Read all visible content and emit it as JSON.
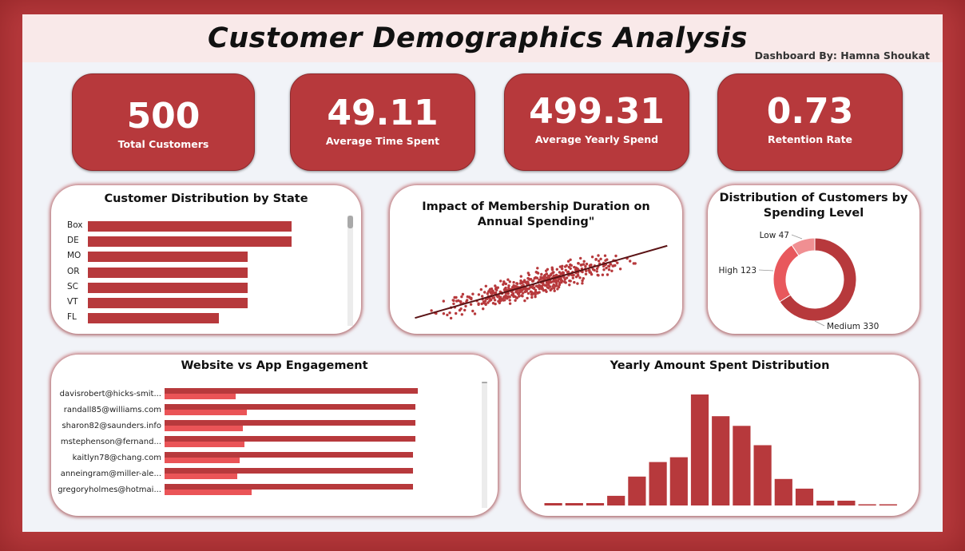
{
  "header": {
    "title": "Customer Demographics Analysis",
    "byline": "Dashboard By: Hamna Shoukat"
  },
  "kpis": [
    {
      "value": "500",
      "label": "Total Customers"
    },
    {
      "value": "49.11",
      "label": "Average Time Spent"
    },
    {
      "value": "499.31",
      "label": "Average Yearly Spend"
    },
    {
      "value": "0.73",
      "label": "Retention Rate"
    }
  ],
  "colors": {
    "frame": "#b7393c",
    "bar": "#b7393c",
    "bar_light": "#ea5457",
    "trend": "#5a1315",
    "low": "#f08f92",
    "high": "#e8585c",
    "medium": "#b7393c"
  },
  "state_chart": {
    "title": "Customer Distribution by State",
    "chart_data": {
      "type": "bar",
      "orientation": "horizontal",
      "categories": [
        "Box",
        "DE",
        "MO",
        "OR",
        "SC",
        "VT",
        "FL"
      ],
      "values": [
        14,
        14,
        11,
        11,
        11,
        11,
        9
      ],
      "xlim": [
        0,
        15
      ]
    }
  },
  "scatter_chart": {
    "title": "Impact of Membership Duration on Annual Spending\"",
    "chart_data": {
      "type": "scatter",
      "n_points": 500,
      "trendline": true,
      "x": [
        0.2,
        1.0,
        2.0,
        3.0,
        4.0,
        5.0,
        6.0,
        6.9
      ],
      "y": [
        270,
        330,
        400,
        470,
        540,
        600,
        670,
        740
      ]
    }
  },
  "donut_chart": {
    "title": "Distribution of Customers by Spending Level",
    "chart_data": {
      "type": "pie",
      "donut": true,
      "labels": [
        "Medium",
        "High",
        "Low"
      ],
      "values": [
        330,
        123,
        47
      ],
      "data_labels": [
        "Medium 330",
        "High 123",
        "Low 47"
      ]
    }
  },
  "engagement_chart": {
    "title": "Website vs App Engagement",
    "chart_data": {
      "type": "bar",
      "orientation": "horizontal",
      "categories": [
        "davisrobert@hicks-smit...",
        "randall85@williams.com",
        "sharon82@saunders.info",
        "mstephenson@fernand...",
        "kaitlyn78@chang.com",
        "anneingram@miller-ale...",
        "gregoryholmes@hotmai..."
      ],
      "series": [
        {
          "values": [
            41.9,
            41.6,
            41.6,
            41.5,
            41.2,
            41.2,
            41.1
          ]
        },
        {
          "values": [
            11.8,
            13.6,
            13.0,
            13.2,
            12.4,
            12.0,
            14.4
          ]
        }
      ],
      "xlim": [
        0,
        45
      ]
    }
  },
  "yearly_chart": {
    "title": "Yearly Amount Spent Distribution",
    "chart_data": {
      "type": "bar",
      "histogram": true,
      "values": [
        1,
        1,
        1,
        4,
        12,
        18,
        20,
        46,
        37,
        33,
        25,
        11,
        7,
        2,
        2,
        0.5,
        0.5
      ],
      "ylim": [
        0,
        48
      ]
    }
  }
}
